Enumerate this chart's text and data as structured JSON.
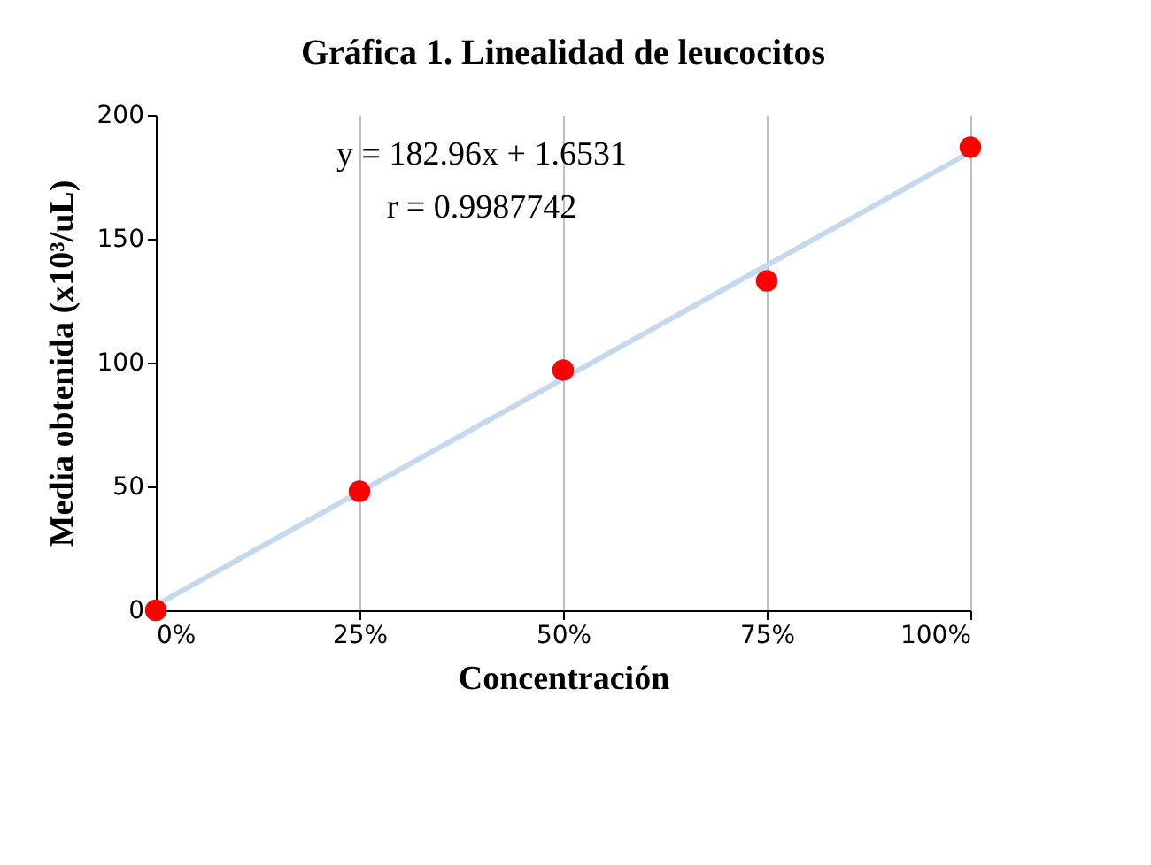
{
  "chart_data": {
    "type": "scatter",
    "title": "Gráfica 1. Linealidad de leucocitos",
    "xlabel": "Concentración",
    "ylabel": "Media obtenida (x10³/uL)",
    "x": [
      0,
      25,
      50,
      75,
      100
    ],
    "series": [
      {
        "type": "line",
        "color": "#c5d9ee",
        "marker": "none",
        "x": [
          0,
          100
        ],
        "values": [
          2,
          185
        ]
      },
      {
        "color": "#ff0000",
        "values": [
          0,
          48,
          97,
          133,
          187
        ]
      }
    ],
    "xlim": [
      0,
      100
    ],
    "xticks": [
      {
        "value": 0,
        "label": "0%"
      },
      {
        "value": 25,
        "label": "25%"
      },
      {
        "value": 50,
        "label": "50%"
      },
      {
        "value": 75,
        "label": "75%"
      },
      {
        "value": 100,
        "label": "100%"
      }
    ],
    "ylim": [
      0,
      200
    ],
    "yticks": [
      0,
      50,
      100,
      150,
      200
    ],
    "grid": "x",
    "marker": "circle",
    "annotations": [
      "y = 182.96x + 1.6531",
      "r = 0.9987742"
    ]
  }
}
